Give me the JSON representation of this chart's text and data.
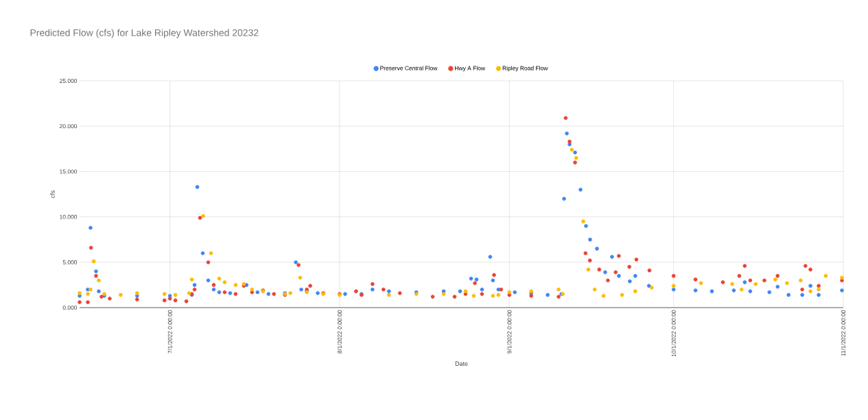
{
  "chart_data": {
    "type": "scatter",
    "title": "Predicted Flow (cfs) for Lake Ripley Watershed 20232",
    "xlabel": "Date",
    "ylabel": "cfs",
    "xlim": [
      "2022-06-14T12:00",
      "2022-11-01"
    ],
    "xticks": [
      {
        "value": "2022-07-01",
        "label": "7/1/2022 0:00:00"
      },
      {
        "value": "2022-08-01",
        "label": "8/1/2022 0:00:00"
      },
      {
        "value": "2022-09-01",
        "label": "9/1/2022 0:00:00"
      },
      {
        "value": "2022-10-01",
        "label": "10/1/2022 0:00:00"
      },
      {
        "value": "2022-11-01",
        "label": "11/1/2022 0:00:00"
      }
    ],
    "ylim": [
      0,
      25
    ],
    "yticks": [
      {
        "value": 0,
        "label": "0.000"
      },
      {
        "value": 5,
        "label": "5.000"
      },
      {
        "value": 10,
        "label": "10.000"
      },
      {
        "value": 15,
        "label": "15.000"
      },
      {
        "value": 20,
        "label": "20.000"
      },
      {
        "value": 25,
        "label": "25.000"
      }
    ],
    "grid": true,
    "legend": "top",
    "marker": "circle",
    "series": [
      {
        "name": "Preserve Central Flow",
        "color": "#4285f4",
        "x": [
          "2022-06-14T12:00",
          "2022-06-16",
          "2022-06-16T12:00",
          "2022-06-17T12:00",
          "2022-06-18",
          "2022-06-19",
          "2022-06-25",
          "2022-07-01",
          "2022-07-05",
          "2022-07-05T12:00",
          "2022-07-06",
          "2022-07-07",
          "2022-07-08",
          "2022-07-09",
          "2022-07-10",
          "2022-07-12",
          "2022-07-15",
          "2022-07-17",
          "2022-07-19",
          "2022-07-22",
          "2022-07-24",
          "2022-07-25",
          "2022-07-26",
          "2022-07-28",
          "2022-08-02",
          "2022-08-05",
          "2022-08-07",
          "2022-08-10",
          "2022-08-15",
          "2022-08-20",
          "2022-08-23",
          "2022-08-25",
          "2022-08-26",
          "2022-08-27",
          "2022-08-28T12:00",
          "2022-08-29",
          "2022-08-30",
          "2022-09-02",
          "2022-09-05",
          "2022-09-08",
          "2022-09-10T12:00",
          "2022-09-11",
          "2022-09-11T12:00",
          "2022-09-12",
          "2022-09-13",
          "2022-09-14",
          "2022-09-15",
          "2022-09-15T18:00",
          "2022-09-17",
          "2022-09-18T12:00",
          "2022-09-19T18:00",
          "2022-09-21",
          "2022-09-23",
          "2022-09-24",
          "2022-09-26T12:00",
          "2022-10-01",
          "2022-10-05",
          "2022-10-08",
          "2022-10-12",
          "2022-10-14",
          "2022-10-15",
          "2022-10-18T12:00",
          "2022-10-20",
          "2022-10-22",
          "2022-10-24T12:00",
          "2022-10-26",
          "2022-10-27T12:00",
          "2022-10-31T18:00"
        ],
        "values": [
          1.3,
          2.0,
          8.8,
          4.0,
          1.8,
          1.3,
          1.3,
          1.3,
          1.4,
          2.5,
          13.3,
          6.0,
          3.0,
          2.0,
          1.7,
          1.6,
          2.5,
          1.7,
          1.5,
          1.6,
          5.0,
          2.0,
          1.8,
          1.6,
          1.5,
          1.5,
          2.0,
          1.8,
          1.7,
          1.8,
          1.8,
          3.2,
          3.1,
          2.0,
          5.6,
          3.0,
          2.0,
          1.7,
          1.6,
          1.4,
          1.5,
          12.0,
          19.2,
          18.0,
          17.1,
          13.0,
          9.0,
          7.5,
          6.5,
          3.9,
          5.6,
          3.5,
          2.9,
          3.5,
          2.4,
          2.0,
          1.9,
          1.8,
          1.9,
          2.8,
          1.8,
          1.7,
          2.3,
          1.4,
          1.4,
          2.4,
          1.4,
          1.9
        ]
      },
      {
        "name": "Hwy A Flow",
        "color": "#ea4335",
        "x": [
          "2022-06-14T12:00",
          "2022-06-16",
          "2022-06-16T14:00",
          "2022-06-17T12:00",
          "2022-06-18T12:00",
          "2022-06-20",
          "2022-06-25",
          "2022-06-30",
          "2022-07-01",
          "2022-07-02",
          "2022-07-04",
          "2022-07-05",
          "2022-07-05T12:00",
          "2022-07-06T12:00",
          "2022-07-08",
          "2022-07-09",
          "2022-07-11",
          "2022-07-13",
          "2022-07-14T12:00",
          "2022-07-16",
          "2022-07-18",
          "2022-07-20",
          "2022-07-22",
          "2022-07-24T12:00",
          "2022-07-26",
          "2022-07-26T15:00",
          "2022-07-29",
          "2022-08-01",
          "2022-08-04",
          "2022-08-05",
          "2022-08-07",
          "2022-08-09",
          "2022-08-12",
          "2022-08-18",
          "2022-08-22",
          "2022-08-24",
          "2022-08-25T17:00",
          "2022-08-27",
          "2022-08-29T05:00",
          "2022-08-30T12:00",
          "2022-09-01",
          "2022-09-05",
          "2022-09-10",
          "2022-09-11T07:00",
          "2022-09-12",
          "2022-09-13",
          "2022-09-14T22:00",
          "2022-09-15T17:00",
          "2022-09-17T10:00",
          "2022-09-19",
          "2022-09-20T10:00",
          "2022-09-21",
          "2022-09-22T22:00",
          "2022-09-24T05:00",
          "2022-09-26T14:00",
          "2022-10-01",
          "2022-10-05",
          "2022-10-10",
          "2022-10-13",
          "2022-10-14",
          "2022-10-15",
          "2022-10-17T14:00",
          "2022-10-20",
          "2022-10-24T12:00",
          "2022-10-25T02:00",
          "2022-10-26",
          "2022-10-27T12:00",
          "2022-10-31T18:00"
        ],
        "values": [
          0.6,
          0.6,
          6.6,
          3.5,
          1.2,
          1.0,
          0.9,
          0.8,
          1.0,
          0.8,
          0.7,
          1.5,
          2.0,
          9.9,
          5.0,
          2.5,
          1.7,
          1.5,
          2.4,
          1.7,
          1.9,
          1.5,
          1.4,
          4.7,
          2.0,
          2.4,
          1.6,
          1.5,
          1.8,
          1.4,
          2.6,
          2.0,
          1.6,
          1.2,
          1.2,
          1.5,
          2.7,
          1.5,
          3.6,
          2.0,
          1.4,
          1.3,
          1.2,
          20.9,
          18.3,
          16.0,
          6.0,
          5.2,
          4.2,
          3.0,
          3.9,
          5.7,
          4.5,
          5.3,
          4.1,
          3.5,
          3.1,
          2.8,
          3.5,
          4.6,
          3.0,
          3.0,
          3.5,
          2.0,
          4.6,
          4.2,
          2.4,
          3.0
        ]
      },
      {
        "name": "Ripley Road Flow",
        "color": "#fbbc04",
        "x": [
          "2022-06-14T12:00",
          "2022-06-16",
          "2022-06-16T12:00",
          "2022-06-17T02:00",
          "2022-06-18",
          "2022-06-19",
          "2022-06-22",
          "2022-06-25",
          "2022-06-30",
          "2022-07-02",
          "2022-07-04T12:00",
          "2022-07-05",
          "2022-07-07T02:00",
          "2022-07-08T12:00",
          "2022-07-10",
          "2022-07-11",
          "2022-07-13",
          "2022-07-14T12:00",
          "2022-07-16",
          "2022-07-18",
          "2022-07-22",
          "2022-07-23",
          "2022-07-24T19:00",
          "2022-07-26",
          "2022-07-29",
          "2022-08-01",
          "2022-08-10",
          "2022-08-15",
          "2022-08-20",
          "2022-08-24",
          "2022-08-25T12:00",
          "2022-08-29",
          "2022-08-30",
          "2022-09-01",
          "2022-09-05",
          "2022-09-10",
          "2022-09-10T18:00",
          "2022-09-12T10:00",
          "2022-09-13T05:00",
          "2022-09-14T12:00",
          "2022-09-15T10:00",
          "2022-09-16T14:00",
          "2022-09-18T05:00",
          "2022-09-21T14:00",
          "2022-09-24",
          "2022-09-27",
          "2022-10-01",
          "2022-10-06",
          "2022-10-11T17:00",
          "2022-10-13T10:00",
          "2022-10-16",
          "2022-10-19T14:00",
          "2022-10-21T17:00",
          "2022-10-24T05:00",
          "2022-10-26",
          "2022-10-27T12:00",
          "2022-10-28T19:00",
          "2022-10-31T18:00"
        ],
        "values": [
          1.6,
          1.5,
          2.0,
          5.1,
          3.0,
          1.5,
          1.4,
          1.6,
          1.5,
          1.4,
          1.6,
          3.1,
          10.1,
          6.0,
          3.2,
          2.8,
          2.5,
          2.6,
          2.0,
          1.8,
          1.5,
          1.6,
          3.3,
          1.7,
          1.5,
          1.4,
          1.4,
          1.5,
          1.5,
          1.8,
          1.3,
          1.3,
          1.4,
          1.7,
          1.8,
          2.0,
          1.5,
          17.4,
          16.5,
          9.5,
          4.2,
          2.0,
          1.3,
          1.4,
          1.8,
          2.2,
          2.4,
          2.7,
          2.6,
          2.0,
          2.6,
          3.1,
          2.7,
          3.0,
          1.8,
          2.0,
          3.5,
          3.3
        ]
      }
    ]
  }
}
